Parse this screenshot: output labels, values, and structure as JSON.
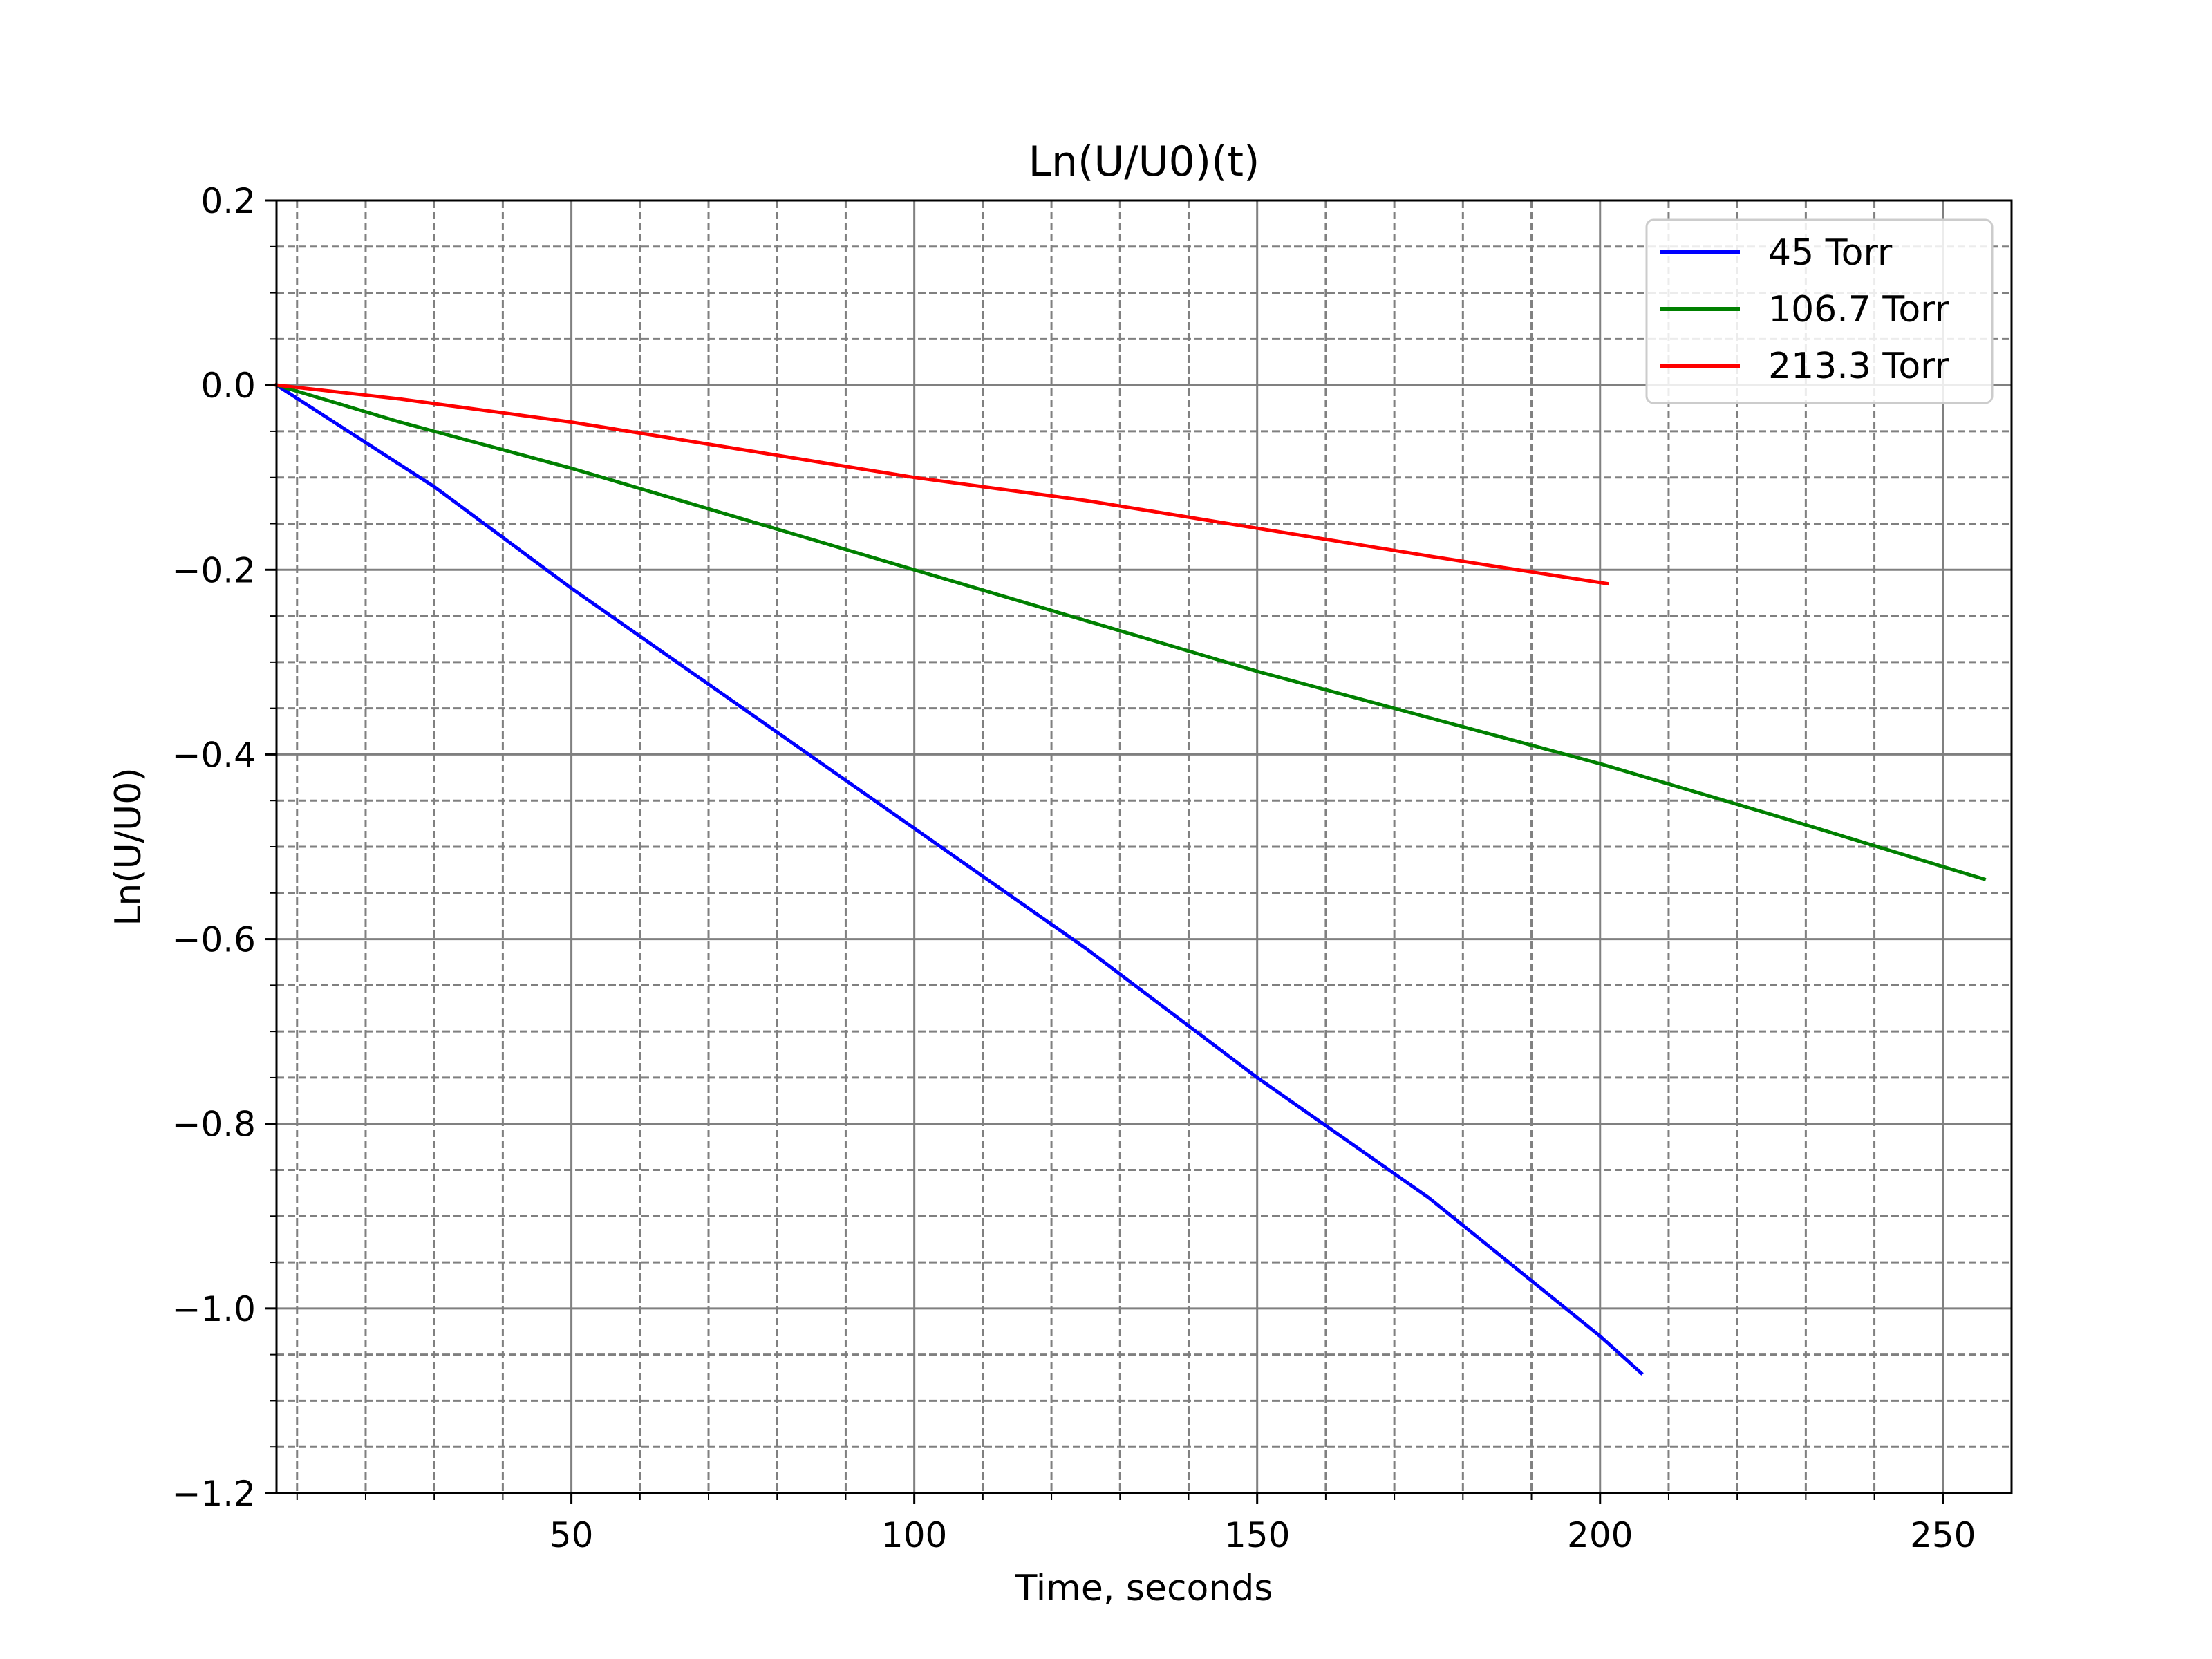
{
  "chart_data": {
    "type": "line",
    "title": "Ln(U/U0)(t)",
    "xlabel": "Time, seconds",
    "ylabel": "Ln(U/U0)",
    "xlim": [
      7,
      260
    ],
    "ylim": [
      -1.2,
      0.2
    ],
    "x_major_ticks": [
      50,
      100,
      150,
      200,
      250
    ],
    "x_major_tick_labels": [
      "50",
      "100",
      "150",
      "200",
      "250"
    ],
    "x_minor_ticks": [
      10,
      20,
      30,
      40,
      60,
      70,
      80,
      90,
      110,
      120,
      130,
      140,
      160,
      170,
      180,
      190,
      210,
      220,
      230,
      240
    ],
    "y_major_ticks": [
      0.2,
      0.0,
      -0.2,
      -0.4,
      -0.6,
      -0.8,
      -1.0,
      -1.2
    ],
    "y_major_tick_labels": [
      "0.2",
      "0.0",
      "−0.2",
      "−0.4",
      "−0.6",
      "−0.8",
      "−1.0",
      "−1.2"
    ],
    "y_minor_ticks": [
      0.15,
      0.1,
      0.05,
      -0.05,
      -0.1,
      -0.15,
      -0.25,
      -0.3,
      -0.35,
      -0.45,
      -0.5,
      -0.55,
      -0.65,
      -0.7,
      -0.75,
      -0.85,
      -0.9,
      -0.95,
      -1.05,
      -1.1,
      -1.15
    ],
    "grid": "major solid, minor dashed",
    "legend_position": "top-right",
    "series": [
      {
        "name": "45 Torr",
        "color": "#0000ff",
        "x": [
          7,
          30,
          50,
          75,
          100,
          125,
          150,
          175,
          200,
          206
        ],
        "y": [
          0.0,
          -0.11,
          -0.22,
          -0.35,
          -0.48,
          -0.61,
          -0.75,
          -0.88,
          -1.03,
          -1.07
        ]
      },
      {
        "name": "106.7 Torr",
        "color": "#008000",
        "x": [
          7,
          25,
          50,
          75,
          100,
          125,
          150,
          175,
          200,
          225,
          256
        ],
        "y": [
          0.0,
          -0.04,
          -0.09,
          -0.145,
          -0.2,
          -0.255,
          -0.31,
          -0.36,
          -0.41,
          -0.465,
          -0.535
        ]
      },
      {
        "name": "213.3 Torr",
        "color": "#ff0000",
        "x": [
          7,
          25,
          50,
          75,
          100,
          125,
          150,
          175,
          201
        ],
        "y": [
          0.0,
          -0.015,
          -0.04,
          -0.07,
          -0.1,
          -0.125,
          -0.155,
          -0.185,
          -0.215
        ]
      }
    ]
  }
}
